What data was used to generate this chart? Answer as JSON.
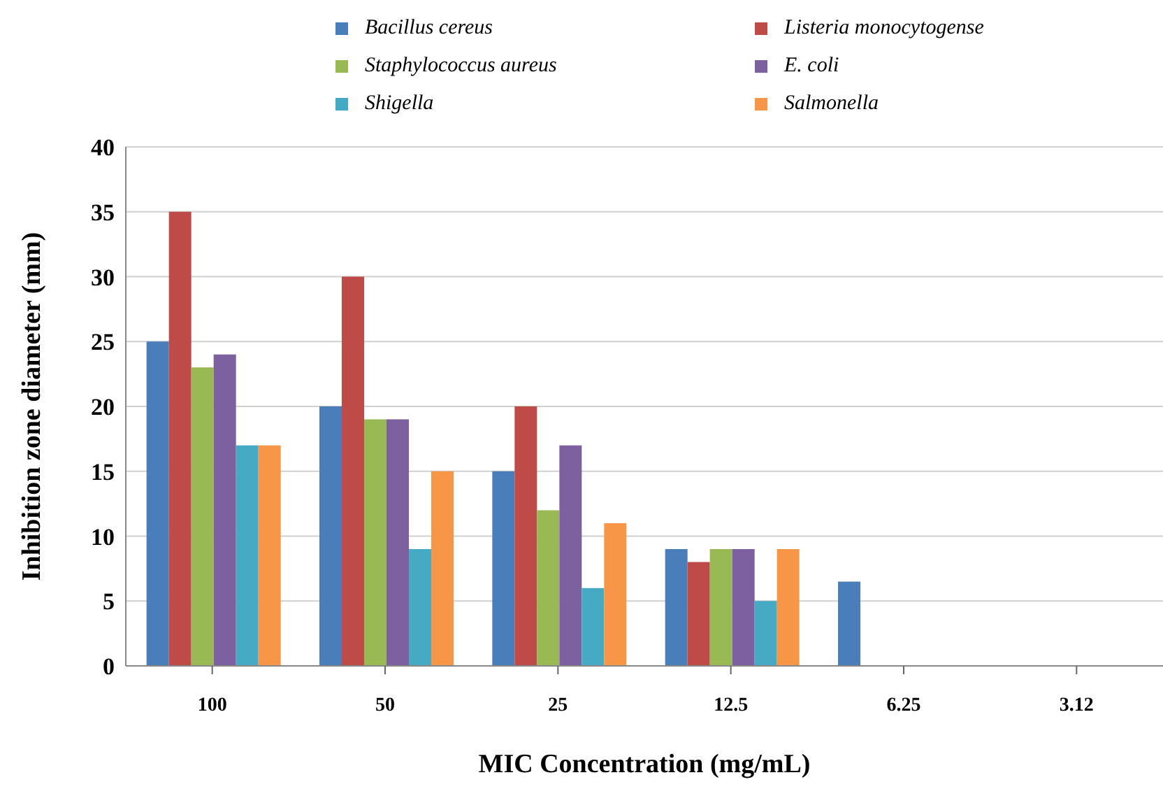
{
  "chart_data": {
    "type": "bar",
    "xlabel": "MIC Concentration (mg/mL)",
    "ylabel": "Inhibition zone diameter (mm)",
    "categories": [
      "100",
      "50",
      "25",
      "12.5",
      "6.25",
      "3.12"
    ],
    "series": [
      {
        "name": "Bacillus cereus",
        "color": "#4a7ebb",
        "values": [
          25,
          20,
          15,
          9,
          6.5,
          null
        ]
      },
      {
        "name": "Listeria monocytogense",
        "color": "#be4b48",
        "values": [
          35,
          30,
          20,
          8,
          null,
          null
        ]
      },
      {
        "name": "Staphylococcus aureus",
        "color": "#98b954",
        "values": [
          23,
          19,
          12,
          9,
          null,
          null
        ]
      },
      {
        "name": "E. coli",
        "color": "#7d60a0",
        "values": [
          24,
          19,
          17,
          9,
          null,
          null
        ]
      },
      {
        "name": "Shigella",
        "color": "#46aac5",
        "values": [
          17,
          9,
          6,
          5,
          null,
          null
        ]
      },
      {
        "name": "Salmonella",
        "color": "#f79646",
        "values": [
          17,
          15,
          11,
          9,
          null,
          null
        ]
      }
    ],
    "ylim": [
      0,
      40
    ],
    "yticks": [
      0,
      5,
      10,
      15,
      20,
      25,
      30,
      35,
      40
    ],
    "grid": "y",
    "legend": "top"
  }
}
